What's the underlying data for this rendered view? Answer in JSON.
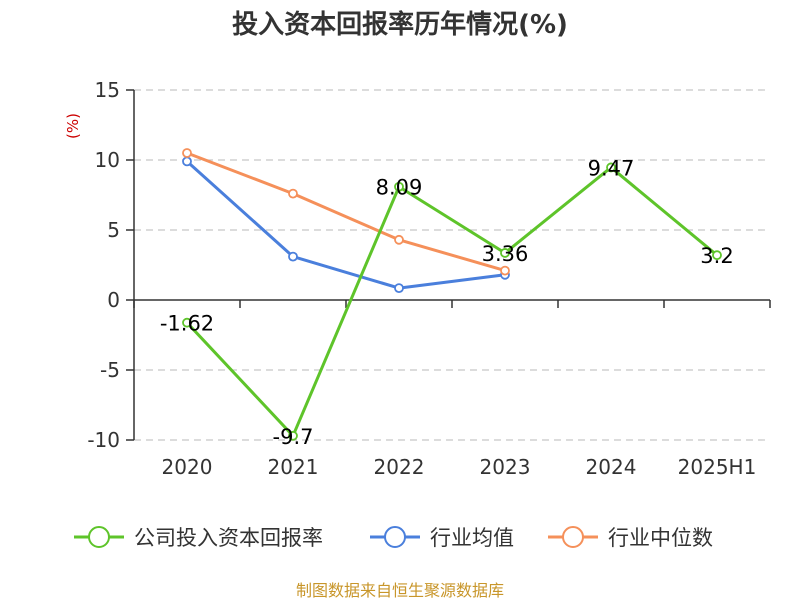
{
  "chart_data": {
    "type": "line",
    "title": "投入资本回报率历年情况(%)",
    "ylabel": "(%)",
    "categories": [
      "2020",
      "2021",
      "2022",
      "2023",
      "2024",
      "2025H1"
    ],
    "y_ticks": [
      "15",
      "10",
      "5",
      "0",
      "-5",
      "-10"
    ],
    "ylim": [
      -10,
      15
    ],
    "grid": true,
    "legend_position": "bottom",
    "series": [
      {
        "name": "公司投入资本回报率",
        "color": "#5ec42a",
        "values": [
          -1.62,
          -9.7,
          8.09,
          3.36,
          9.47,
          3.2
        ],
        "labels": [
          "-1.62",
          "-9.7",
          "8.09",
          "3.36",
          "9.47",
          "3.2"
        ]
      },
      {
        "name": "行业均值",
        "color": "#4a7fdc",
        "values": [
          9.9,
          3.1,
          0.85,
          1.8,
          null,
          null
        ]
      },
      {
        "name": "行业中位数",
        "color": "#f5905a",
        "values": [
          10.5,
          7.6,
          4.3,
          2.1,
          null,
          null
        ]
      }
    ],
    "source": "制图数据来自恒生聚源数据库"
  }
}
